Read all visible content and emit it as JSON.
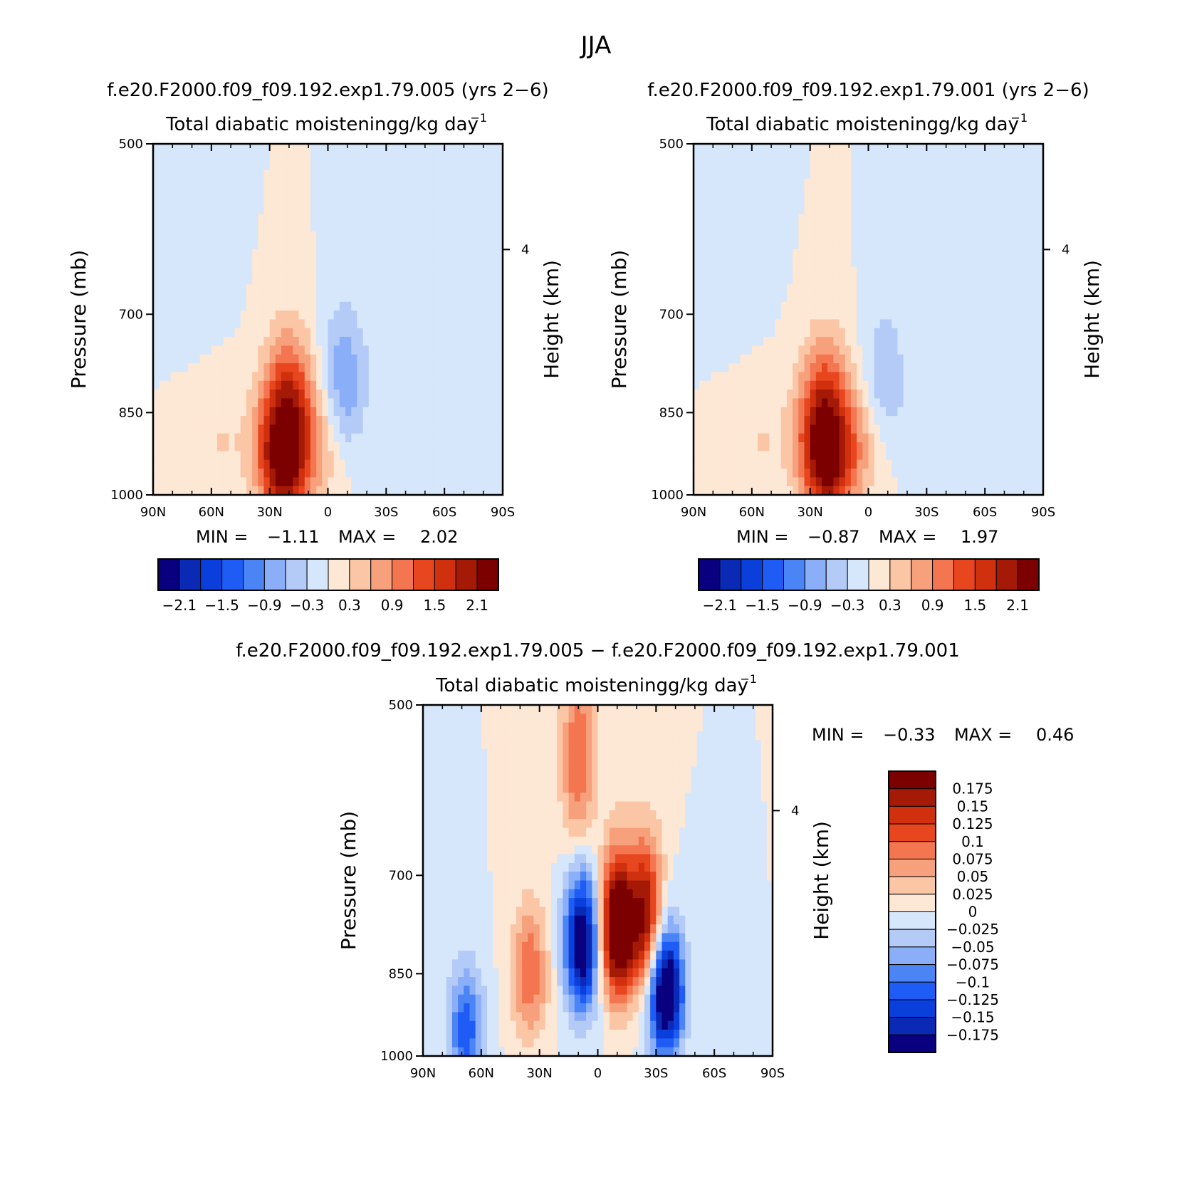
{
  "page": {
    "title": "JJA"
  },
  "colors": {
    "abs_scale": [
      "#08007f",
      "#0a2ab5",
      "#0b3fdc",
      "#1f5cf5",
      "#4a84f5",
      "#8aaef7",
      "#b4cbf8",
      "#d6e6fb",
      "#fde7d5",
      "#fbc6a5",
      "#f7a07c",
      "#f47650",
      "#e8461e",
      "#d0300e",
      "#a51a07",
      "#7d0000"
    ],
    "diff_scale": [
      "#08007f",
      "#0a2ab5",
      "#0b3fdc",
      "#1f5cf5",
      "#4a84f5",
      "#8aaef7",
      "#b4cbf8",
      "#d6e6fb",
      "#fde7d5",
      "#fbc6a5",
      "#f7a07c",
      "#f47650",
      "#e8461e",
      "#d0300e",
      "#a51a07",
      "#7d0000"
    ]
  },
  "chart_data": [
    {
      "id": "panel_a",
      "type": "heatmap",
      "title": "f.e20.F2000.f09_f09.192.exp1.79.005 (yrs 2−6)",
      "subtitle": "Total diabatic moisteningg/kg day",
      "subtitle_sup": "−1",
      "ylabel": "Pressure (mb)",
      "ylabel_right": "Height (km)",
      "x_ticks": [
        "90N",
        "60N",
        "30N",
        "0",
        "30S",
        "60S",
        "90S"
      ],
      "y_ticks": [
        "500",
        "700",
        "850",
        "1000"
      ],
      "y_right_ticks": [
        "4"
      ],
      "ylim": [
        1000,
        500
      ],
      "xlim": [
        90,
        -90
      ],
      "stats": {
        "min_label": "MIN =",
        "min": "−1.11",
        "max_label": "MAX =",
        "max": "2.02"
      },
      "colorbar": {
        "orientation": "horizontal",
        "labels": [
          "−2.1",
          "−1.5",
          "−0.9",
          "−0.3",
          "0.3",
          "0.9",
          "1.5",
          "2.1"
        ]
      },
      "features": [
        {
          "lat": 22,
          "p": 950,
          "v": 1.9
        },
        {
          "lat": 20,
          "p": 830,
          "v": 1.4
        },
        {
          "lat": 5,
          "p": 900,
          "v": 0.6
        },
        {
          "lat": -8,
          "p": 800,
          "v": -0.9
        },
        {
          "lat": 30,
          "p": 900,
          "v": 0.6
        },
        {
          "lat": 55,
          "p": 900,
          "v": 0.3
        },
        {
          "lat": -40,
          "p": 650,
          "v": -0.3
        },
        {
          "lat": 62,
          "p": 600,
          "v": -0.3
        }
      ]
    },
    {
      "id": "panel_b",
      "type": "heatmap",
      "title": "f.e20.F2000.f09_f09.192.exp1.79.001 (yrs 2−6)",
      "subtitle": "Total diabatic moisteningg/kg day",
      "subtitle_sup": "−1",
      "ylabel": "Pressure (mb)",
      "ylabel_right": "Height (km)",
      "x_ticks": [
        "90N",
        "60N",
        "30N",
        "0",
        "30S",
        "60S",
        "90S"
      ],
      "y_ticks": [
        "500",
        "700",
        "850",
        "1000"
      ],
      "y_right_ticks": [
        "4"
      ],
      "ylim": [
        1000,
        500
      ],
      "xlim": [
        90,
        -90
      ],
      "stats": {
        "min_label": "MIN =",
        "min": "−0.87",
        "max_label": "MAX =",
        "max": "1.97"
      },
      "colorbar": {
        "orientation": "horizontal",
        "labels": [
          "−2.1",
          "−1.5",
          "−0.9",
          "−0.3",
          "0.3",
          "0.9",
          "1.5",
          "2.1"
        ]
      },
      "features": [
        {
          "lat": 20,
          "p": 950,
          "v": 1.8
        },
        {
          "lat": 22,
          "p": 840,
          "v": 1.3
        },
        {
          "lat": 4,
          "p": 900,
          "v": 0.6
        },
        {
          "lat": -8,
          "p": 800,
          "v": -0.6
        },
        {
          "lat": 30,
          "p": 900,
          "v": 0.6
        },
        {
          "lat": 55,
          "p": 900,
          "v": 0.3
        },
        {
          "lat": -40,
          "p": 650,
          "v": -0.3
        },
        {
          "lat": 62,
          "p": 600,
          "v": -0.3
        }
      ]
    },
    {
      "id": "panel_diff",
      "type": "heatmap",
      "title": "f.e20.F2000.f09_f09.192.exp1.79.005 − f.e20.F2000.f09_f09.192.exp1.79.001",
      "subtitle": "Total diabatic moisteningg/kg day",
      "subtitle_sup": "−1",
      "ylabel": "Pressure (mb)",
      "ylabel_right": "Height (km)",
      "x_ticks": [
        "90N",
        "60N",
        "30N",
        "0",
        "30S",
        "60S",
        "90S"
      ],
      "y_ticks": [
        "500",
        "700",
        "850",
        "1000"
      ],
      "y_right_ticks": [
        "4"
      ],
      "ylim": [
        1000,
        500
      ],
      "xlim": [
        90,
        -90
      ],
      "stats": {
        "min_label": "MIN =",
        "min": "−0.33",
        "max_label": "MAX =",
        "max": "0.46"
      },
      "colorbar": {
        "orientation": "vertical",
        "labels": [
          "0.175",
          "0.15",
          "0.125",
          "0.1",
          "0.075",
          "0.05",
          "0.025",
          "0",
          "−0.025",
          "−0.05",
          "−0.075",
          "−0.1",
          "−0.125",
          "−0.15",
          "−0.175"
        ]
      },
      "features": [
        {
          "lat": -10,
          "p": 780,
          "v": 0.25
        },
        {
          "lat": -25,
          "p": 760,
          "v": 0.18
        },
        {
          "lat": 8,
          "p": 800,
          "v": -0.22
        },
        {
          "lat": -35,
          "p": 880,
          "v": -0.25
        },
        {
          "lat": 35,
          "p": 850,
          "v": 0.1
        },
        {
          "lat": 68,
          "p": 950,
          "v": -0.12
        },
        {
          "lat": 10,
          "p": 560,
          "v": 0.1
        }
      ]
    }
  ]
}
